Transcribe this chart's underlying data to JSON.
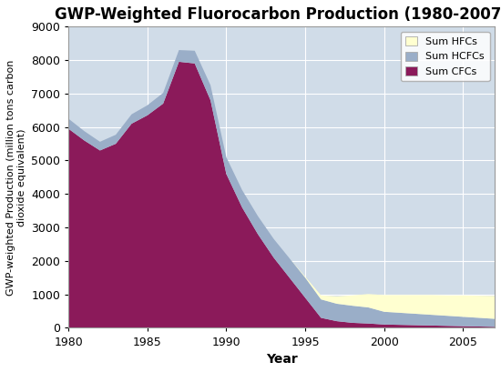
{
  "title": "GWP-Weighted Fluorocarbon Production (1980-2007)",
  "xlabel": "Year",
  "ylabel": "GWP-weighted Production (million tons carbon\ndioxide equivalent)",
  "ylim": [
    0,
    9000
  ],
  "xlim": [
    1980,
    2007
  ],
  "yticks": [
    0,
    1000,
    2000,
    3000,
    4000,
    5000,
    6000,
    7000,
    8000,
    9000
  ],
  "xticks": [
    1980,
    1985,
    1990,
    1995,
    2000,
    2005
  ],
  "years": [
    1980,
    1981,
    1982,
    1983,
    1984,
    1985,
    1986,
    1987,
    1988,
    1989,
    1990,
    1991,
    1992,
    1993,
    1994,
    1995,
    1996,
    1997,
    1998,
    1999,
    2000,
    2001,
    2002,
    2003,
    2004,
    2005,
    2006,
    2007
  ],
  "cfcs": [
    5950,
    5600,
    5300,
    5500,
    6100,
    6350,
    6700,
    7950,
    7900,
    6800,
    4600,
    3600,
    2800,
    2100,
    1500,
    900,
    300,
    200,
    150,
    130,
    100,
    90,
    80,
    70,
    60,
    50,
    40,
    30
  ],
  "hcfcs": [
    300,
    280,
    260,
    270,
    280,
    300,
    320,
    350,
    380,
    450,
    500,
    520,
    540,
    560,
    580,
    600,
    550,
    520,
    510,
    480,
    380,
    360,
    340,
    320,
    300,
    280,
    260,
    240
  ],
  "hfcs": [
    0,
    0,
    0,
    0,
    0,
    0,
    0,
    0,
    0,
    0,
    0,
    0,
    0,
    0,
    0,
    30,
    120,
    220,
    310,
    400,
    500,
    530,
    560,
    590,
    610,
    640,
    660,
    680
  ],
  "color_cfcs": "#8B1A5A",
  "color_hcfcs": "#9AAEC8",
  "color_hfcs": "#FFFFD0",
  "bg_color": "#D0DCE8",
  "grid_color": "#FFFFFF",
  "title_fontsize": 12,
  "ylabel_fontsize": 8,
  "xlabel_fontsize": 10,
  "tick_fontsize": 9,
  "legend_fontsize": 8
}
